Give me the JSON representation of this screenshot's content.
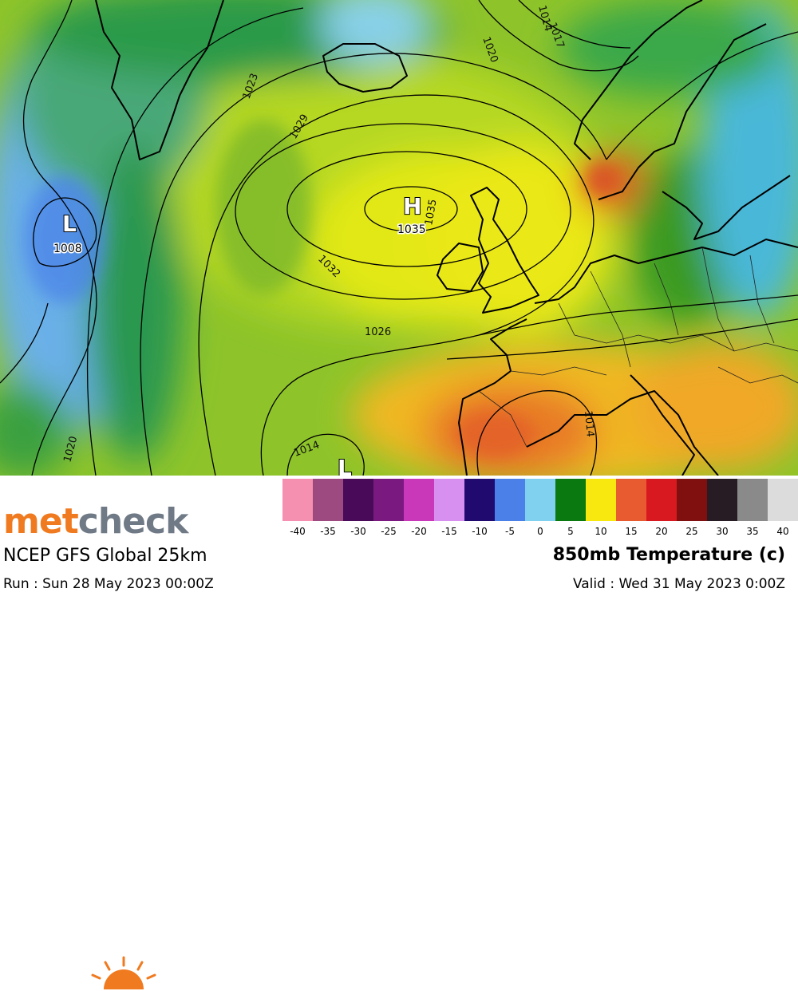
{
  "map": {
    "pressure_centers": [
      {
        "type_label": "H",
        "value": "1035"
      },
      {
        "type_label": "L",
        "value": "1008"
      },
      {
        "type_label": "L",
        "value": ""
      }
    ],
    "isobar_labels": [
      "1020",
      "1014",
      "1017",
      "1023",
      "1029",
      "1032",
      "1035",
      "1026",
      "1014",
      "1020",
      "1014"
    ]
  },
  "legend": {
    "colors": [
      "#f590b0",
      "#9c4a80",
      "#4a0a5a",
      "#7a1a80",
      "#c838b8",
      "#d890f0",
      "#200a70",
      "#4a80e8",
      "#80d0f0",
      "#0a7a10",
      "#f8e810",
      "#e85a30",
      "#d81a20",
      "#801010",
      "#281c24",
      "#8a8a8a",
      "#dcdcdc"
    ],
    "ticks": [
      "-40",
      "-35",
      "-30",
      "-25",
      "-20",
      "-15",
      "-10",
      "-5",
      "0",
      "5",
      "10",
      "15",
      "20",
      "25",
      "30",
      "35",
      "40"
    ]
  },
  "branding": {
    "logo_part1": "met",
    "logo_part2": "check"
  },
  "model": "NCEP GFS Global 25km",
  "run": "Run : Sun 28 May 2023 00:00Z",
  "parameter": "850mb Temperature (c)",
  "valid": "Valid : Wed 31 May 2023 0:00Z",
  "theme": {
    "accent": "#f07a1f",
    "logo_grey": "#6f7a86"
  }
}
